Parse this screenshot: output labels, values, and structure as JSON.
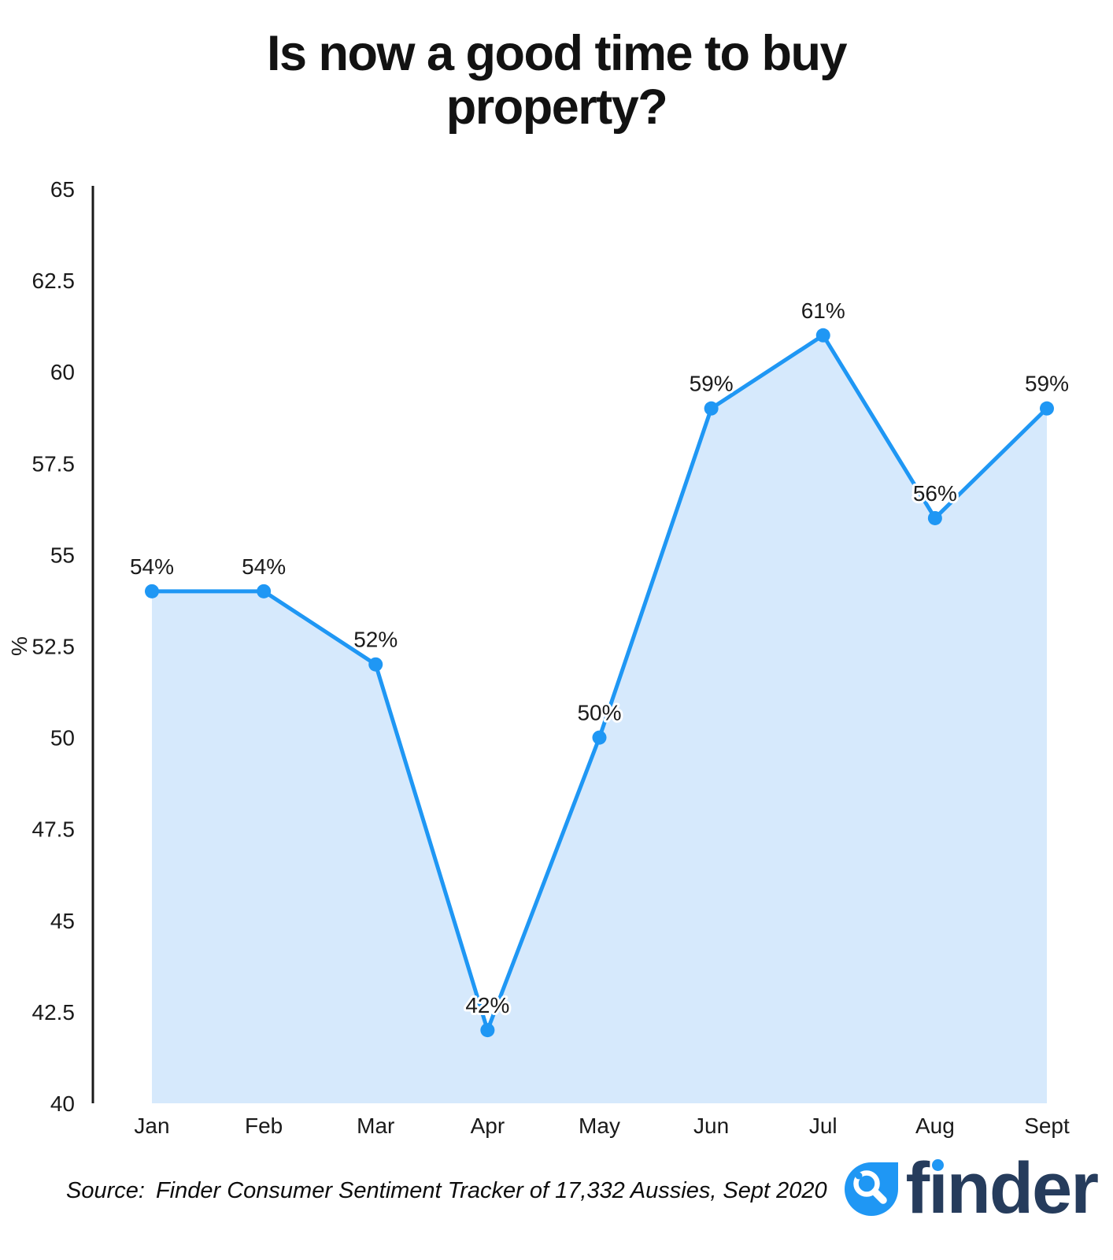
{
  "title": "Is now a good time to buy property?",
  "source": {
    "prefix": "Source:",
    "text": "Finder Consumer Sentiment Tracker of 17,332 Aussies, Sept 2020"
  },
  "logo": {
    "brand": "finder"
  },
  "colors": {
    "line": "#1f97f4",
    "marker": "#1f97f4",
    "area_fill": "#d6e9fc",
    "axis": "#1a1a1a",
    "label": "#1a1a1a",
    "logo_navy": "#263c5c",
    "logo_blue": "#1f97f4"
  },
  "chart_data": {
    "type": "area",
    "title": "Is now a good time to buy property?",
    "categories": [
      "Jan",
      "Feb",
      "Mar",
      "Apr",
      "May",
      "Jun",
      "Jul",
      "Aug",
      "Sept"
    ],
    "values": [
      54,
      54,
      52,
      42,
      50,
      59,
      61,
      56,
      59
    ],
    "point_labels": [
      "54%",
      "54%",
      "52%",
      "42%",
      "50%",
      "59%",
      "61%",
      "56%",
      "59%"
    ],
    "xlabel": "",
    "ylabel": "%",
    "ylim": [
      40,
      65
    ],
    "ytick_labels": [
      "40",
      "42.5",
      "45",
      "47.5",
      "50",
      "52.5",
      "55",
      "57.5",
      "60",
      "62.5",
      "65"
    ],
    "grid": false,
    "legend": false
  }
}
